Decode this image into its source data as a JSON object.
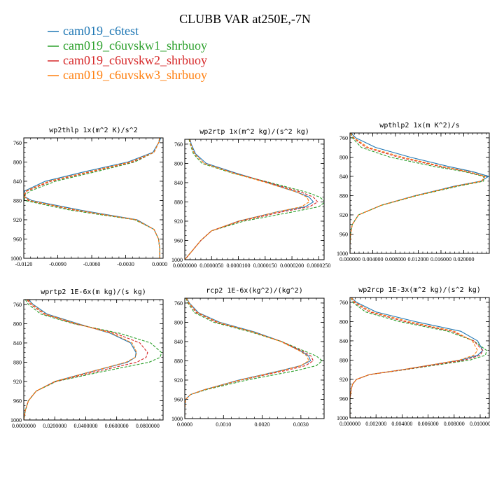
{
  "figure": {
    "title": "CLUBB VAR at250E,-7N"
  },
  "legend": [
    {
      "label": "cam019_c6test",
      "color": "#1f77b4"
    },
    {
      "label": "cam019_c6uvskw1_shrbuoy",
      "color": "#2ca02c"
    },
    {
      "label": "cam019_c6uvskw2_shrbuoy",
      "color": "#d62728"
    },
    {
      "label": "cam019_c6uvskw3_shrbuoy",
      "color": "#ff7f0e"
    }
  ],
  "chart_data": [
    {
      "type": "line",
      "title": "wp2thlp  1x(m^2 K)/s^2",
      "xlim": [
        -0.012,
        0.0003
      ],
      "xticks": [
        -0.012,
        -0.009,
        -0.006,
        -0.003,
        0.0
      ],
      "xticklabels": [
        "-0.0120",
        "-0.0090",
        "-0.0060",
        "-0.0030",
        "0.0000"
      ],
      "ylim": [
        1000,
        750
      ],
      "yticks": [
        760,
        800,
        840,
        880,
        920,
        960,
        1000
      ],
      "y": [
        750,
        760,
        780,
        800,
        820,
        840,
        860,
        870,
        880,
        900,
        920,
        940,
        960,
        980,
        1000
      ],
      "series": [
        {
          "name": "cam019_c6test",
          "color": "#1f77b4",
          "dash": "",
          "values": [
            0.0001,
            -0.0001,
            -0.0006,
            -0.0028,
            -0.0066,
            -0.0101,
            -0.0119,
            -0.0121,
            -0.0113,
            -0.007,
            -0.002,
            -0.0005,
            -0.0001,
            0.0,
            0.0
          ]
        },
        {
          "name": "cam019_c6uvskw1_shrbuoy",
          "color": "#2ca02c",
          "dash": "4,2",
          "values": [
            0.0,
            -0.0001,
            -0.0005,
            -0.0022,
            -0.0056,
            -0.0092,
            -0.0114,
            -0.012,
            -0.0119,
            -0.0079,
            -0.0022,
            -0.0005,
            -0.0001,
            0.0,
            0.0
          ]
        },
        {
          "name": "cam019_c6uvskw2_shrbuoy",
          "color": "#d62728",
          "dash": "4,2",
          "values": [
            0.0,
            -0.0001,
            -0.0005,
            -0.0024,
            -0.006,
            -0.0096,
            -0.0117,
            -0.012,
            -0.0116,
            -0.0075,
            -0.0021,
            -0.0005,
            -0.0001,
            0.0,
            0.0
          ]
        },
        {
          "name": "cam019_c6uvskw3_shrbuoy",
          "color": "#ff7f0e",
          "dash": "4,2",
          "values": [
            0.0,
            -0.0001,
            -0.0005,
            -0.0026,
            -0.0062,
            -0.0098,
            -0.0118,
            -0.012,
            -0.0115,
            -0.0073,
            -0.0021,
            -0.0005,
            -0.0001,
            0.0,
            0.0
          ]
        }
      ]
    },
    {
      "type": "line",
      "title": "wp2rtp  1x(m^2 kg)/(s^2 kg)",
      "xlim": [
        0.0,
        2.6e-05
      ],
      "xticks": [
        0.0,
        5e-06,
        1e-05,
        1.5e-05,
        2e-05,
        2.5e-05
      ],
      "xticklabels": [
        "0.0000000",
        "0.0000050",
        "0.0000100",
        "0.0000150",
        "0.0000200",
        "0.0000250"
      ],
      "ylim": [
        1000,
        750
      ],
      "yticks": [
        760,
        800,
        840,
        880,
        920,
        960,
        1000
      ],
      "y": [
        750,
        760,
        780,
        800,
        820,
        840,
        860,
        870,
        880,
        890,
        900,
        920,
        940,
        960,
        980,
        1000
      ],
      "series": [
        {
          "name": "cam019_c6test",
          "color": "#1f77b4",
          "dash": "",
          "values": [
            1e-06,
            1.2e-06,
            2e-06,
            4e-06,
            9.5e-06,
            1.55e-05,
            2.1e-05,
            2.32e-05,
            2.4e-05,
            2.25e-05,
            1.75e-05,
            1e-05,
            5e-06,
            3e-06,
            1.5e-06,
            0.0
          ]
        },
        {
          "name": "cam019_c6uvskw1_shrbuoy",
          "color": "#2ca02c",
          "dash": "4,2",
          "values": [
            8e-07,
            1e-06,
            1.6e-06,
            3.2e-06,
            8.8e-06,
            1.6e-05,
            2.28e-05,
            2.52e-05,
            2.62e-05,
            2.5e-05,
            2.05e-05,
            1.1e-05,
            5e-06,
            3e-06,
            1.5e-06,
            0.0
          ]
        },
        {
          "name": "cam019_c6uvskw2_shrbuoy",
          "color": "#d62728",
          "dash": "4,2",
          "values": [
            9e-07,
            1.1e-06,
            1.8e-06,
            3.6e-06,
            9.2e-06,
            1.57e-05,
            2.18e-05,
            2.4e-05,
            2.48e-05,
            2.33e-05,
            1.85e-05,
            1.03e-05,
            5e-06,
            3e-06,
            1.5e-06,
            0.0
          ]
        },
        {
          "name": "cam019_c6uvskw3_shrbuoy",
          "color": "#ff7f0e",
          "dash": "4,2",
          "values": [
            9e-07,
            1.1e-06,
            1.8e-06,
            3.6e-06,
            9e-06,
            1.52e-05,
            2.1e-05,
            2.28e-05,
            2.32e-05,
            2.18e-05,
            1.75e-05,
            1e-05,
            5e-06,
            3e-06,
            1.5e-06,
            0.0
          ]
        }
      ]
    },
    {
      "type": "line",
      "title": "wpthlp2  1x(m K^2)/s",
      "xlim": [
        0.0,
        0.0245
      ],
      "xticks": [
        0.0,
        0.004,
        0.008,
        0.012,
        0.016,
        0.02
      ],
      "xticklabels": [
        "0.000000",
        "0.004000",
        "0.008000",
        "0.012000",
        "0.016000",
        "0.020000"
      ],
      "ylim": [
        1000,
        750
      ],
      "yticks": [
        760,
        800,
        840,
        880,
        920,
        960,
        1000
      ],
      "y": [
        750,
        760,
        780,
        800,
        820,
        830,
        840,
        850,
        860,
        880,
        900,
        920,
        940,
        960,
        980,
        1000
      ],
      "series": [
        {
          "name": "cam019_c6test",
          "color": "#1f77b4",
          "dash": "",
          "values": [
            0.0002,
            0.001,
            0.0045,
            0.0105,
            0.0175,
            0.0215,
            0.0244,
            0.023,
            0.0185,
            0.0115,
            0.0055,
            0.0015,
            0.0004,
            0.0001,
            0.0,
            0.0
          ]
        },
        {
          "name": "cam019_c6uvskw1_shrbuoy",
          "color": "#2ca02c",
          "dash": "4,2",
          "values": [
            0.0001,
            0.0004,
            0.002,
            0.007,
            0.015,
            0.02,
            0.0235,
            0.0235,
            0.0192,
            0.0118,
            0.0056,
            0.0015,
            0.0004,
            0.0001,
            0.0,
            0.0
          ]
        },
        {
          "name": "cam019_c6uvskw2_shrbuoy",
          "color": "#d62728",
          "dash": "4,2",
          "values": [
            0.0001,
            0.0006,
            0.0028,
            0.0085,
            0.016,
            0.0205,
            0.0237,
            0.0232,
            0.0188,
            0.0116,
            0.0055,
            0.0015,
            0.0004,
            0.0001,
            0.0,
            0.0
          ]
        },
        {
          "name": "cam019_c6uvskw3_shrbuoy",
          "color": "#ff7f0e",
          "dash": "4,2",
          "values": [
            0.0001,
            0.0007,
            0.0032,
            0.0092,
            0.0165,
            0.0208,
            0.0238,
            0.0231,
            0.0187,
            0.0116,
            0.0055,
            0.0015,
            0.0004,
            0.0001,
            0.0,
            0.0
          ]
        }
      ]
    },
    {
      "type": "line",
      "title": "wprtp2  1E-6x(m kg)/(s kg)",
      "xlim": [
        0.0,
        0.09
      ],
      "xticks": [
        0.0,
        0.02,
        0.04,
        0.06,
        0.08
      ],
      "xticklabels": [
        "0.0000000",
        "0.0200000",
        "0.0400000",
        "0.0600000",
        "0.0800000"
      ],
      "ylim": [
        1000,
        750
      ],
      "yticks": [
        760,
        800,
        840,
        880,
        920,
        960,
        1000
      ],
      "y": [
        750,
        760,
        780,
        800,
        820,
        840,
        860,
        870,
        880,
        900,
        920,
        940,
        960,
        980,
        1000
      ],
      "series": [
        {
          "name": "cam019_c6test",
          "color": "#1f77b4",
          "dash": "",
          "values": [
            0.003,
            0.006,
            0.015,
            0.035,
            0.056,
            0.069,
            0.0725,
            0.072,
            0.067,
            0.043,
            0.02,
            0.008,
            0.003,
            0.001,
            0.0
          ]
        },
        {
          "name": "cam019_c6uvskw1_shrbuoy",
          "color": "#2ca02c",
          "dash": "4,2",
          "values": [
            0.001,
            0.003,
            0.011,
            0.032,
            0.062,
            0.082,
            0.089,
            0.088,
            0.081,
            0.05,
            0.021,
            0.008,
            0.003,
            0.001,
            0.0
          ]
        },
        {
          "name": "cam019_c6uvskw2_shrbuoy",
          "color": "#d62728",
          "dash": "4,2",
          "values": [
            0.002,
            0.0045,
            0.013,
            0.033,
            0.059,
            0.075,
            0.08,
            0.079,
            0.073,
            0.046,
            0.0205,
            0.008,
            0.003,
            0.001,
            0.0
          ]
        },
        {
          "name": "cam019_c6uvskw3_shrbuoy",
          "color": "#ff7f0e",
          "dash": "4,2",
          "values": [
            0.0025,
            0.0055,
            0.014,
            0.034,
            0.057,
            0.07,
            0.073,
            0.072,
            0.066,
            0.043,
            0.02,
            0.008,
            0.003,
            0.001,
            0.0
          ]
        }
      ]
    },
    {
      "type": "line",
      "title": "rcp2  1E-6x(kg^2)/(kg^2)",
      "xlim": [
        0.0,
        0.0036
      ],
      "xticks": [
        0.0,
        0.001,
        0.002,
        0.003
      ],
      "xticklabels": [
        "0.0000",
        "0.0010",
        "0.0020",
        "0.0030"
      ],
      "ylim": [
        1000,
        750
      ],
      "yticks": [
        760,
        800,
        840,
        880,
        920,
        960,
        1000
      ],
      "y": [
        750,
        760,
        780,
        800,
        820,
        840,
        860,
        870,
        880,
        890,
        900,
        920,
        940,
        950,
        960,
        980,
        1000
      ],
      "series": [
        {
          "name": "cam019_c6test",
          "color": "#1f77b4",
          "dash": "",
          "values": [
            5e-05,
            0.00012,
            0.00035,
            0.0009,
            0.0018,
            0.0025,
            0.003,
            0.0032,
            0.00325,
            0.003,
            0.0025,
            0.0014,
            0.0005,
            0.00015,
            2e-05,
            0.0,
            0.0
          ]
        },
        {
          "name": "cam019_c6uvskw1_shrbuoy",
          "color": "#2ca02c",
          "dash": "4,2",
          "values": [
            3e-05,
            8e-05,
            0.00025,
            0.00075,
            0.0017,
            0.0025,
            0.0031,
            0.0034,
            0.00355,
            0.0034,
            0.0029,
            0.0016,
            0.00055,
            0.00015,
            2e-05,
            0.0,
            0.0
          ]
        },
        {
          "name": "cam019_c6uvskw2_shrbuoy",
          "color": "#d62728",
          "dash": "4,2",
          "values": [
            4e-05,
            0.0001,
            0.0003,
            0.00082,
            0.00175,
            0.0025,
            0.00304,
            0.00326,
            0.00332,
            0.00312,
            0.00262,
            0.00145,
            0.00051,
            0.00015,
            2e-05,
            0.0,
            0.0
          ]
        },
        {
          "name": "cam019_c6uvskw3_shrbuoy",
          "color": "#ff7f0e",
          "dash": "4,2",
          "values": [
            4e-05,
            0.00011,
            0.00033,
            0.00086,
            0.00176,
            0.00248,
            0.00298,
            0.00316,
            0.0032,
            0.003,
            0.00252,
            0.00142,
            0.0005,
            0.00015,
            2e-05,
            0.0,
            0.0
          ]
        }
      ]
    },
    {
      "type": "line",
      "title": "wp2rcp  1E-3x(m^2 kg)/(s^2 kg)",
      "xlim": [
        0.0,
        0.0107
      ],
      "xticks": [
        0.0,
        0.002,
        0.004,
        0.006,
        0.008,
        0.01
      ],
      "xticklabels": [
        "0.000000",
        "0.002000",
        "0.004000",
        "0.006000",
        "0.008000",
        "0.010000"
      ],
      "ylim": [
        1000,
        750
      ],
      "yticks": [
        760,
        800,
        840,
        880,
        920,
        960,
        1000
      ],
      "y": [
        750,
        760,
        780,
        800,
        820,
        840,
        860,
        870,
        880,
        900,
        910,
        920,
        930,
        940,
        960,
        980,
        1000
      ],
      "series": [
        {
          "name": "cam019_c6test",
          "color": "#1f77b4",
          "dash": "",
          "values": [
            0.0001,
            0.0005,
            0.002,
            0.005,
            0.0085,
            0.0098,
            0.0102,
            0.0098,
            0.0085,
            0.004,
            0.0015,
            0.0005,
            0.0002,
            0.0001,
            0.0,
            0.0,
            0.0
          ]
        },
        {
          "name": "cam019_c6uvskw1_shrbuoy",
          "color": "#2ca02c",
          "dash": "4,2",
          "values": [
            0.0001,
            0.0002,
            0.0012,
            0.0038,
            0.0075,
            0.0095,
            0.0105,
            0.0104,
            0.0092,
            0.0042,
            0.0015,
            0.0005,
            0.0002,
            0.0001,
            0.0,
            0.0,
            0.0
          ]
        },
        {
          "name": "cam019_c6uvskw2_shrbuoy",
          "color": "#d62728",
          "dash": "4,2",
          "values": [
            0.0001,
            0.0003,
            0.0015,
            0.0042,
            0.0078,
            0.0095,
            0.0102,
            0.01,
            0.0088,
            0.0041,
            0.0015,
            0.0005,
            0.0002,
            0.0001,
            0.0,
            0.0,
            0.0
          ]
        },
        {
          "name": "cam019_c6uvskw3_shrbuoy",
          "color": "#ff7f0e",
          "dash": "4,2",
          "values": [
            0.0001,
            0.0004,
            0.0017,
            0.0045,
            0.008,
            0.0094,
            0.0098,
            0.0095,
            0.0084,
            0.004,
            0.0015,
            0.0005,
            0.0002,
            0.0001,
            0.0,
            0.0,
            0.0
          ]
        }
      ]
    }
  ]
}
